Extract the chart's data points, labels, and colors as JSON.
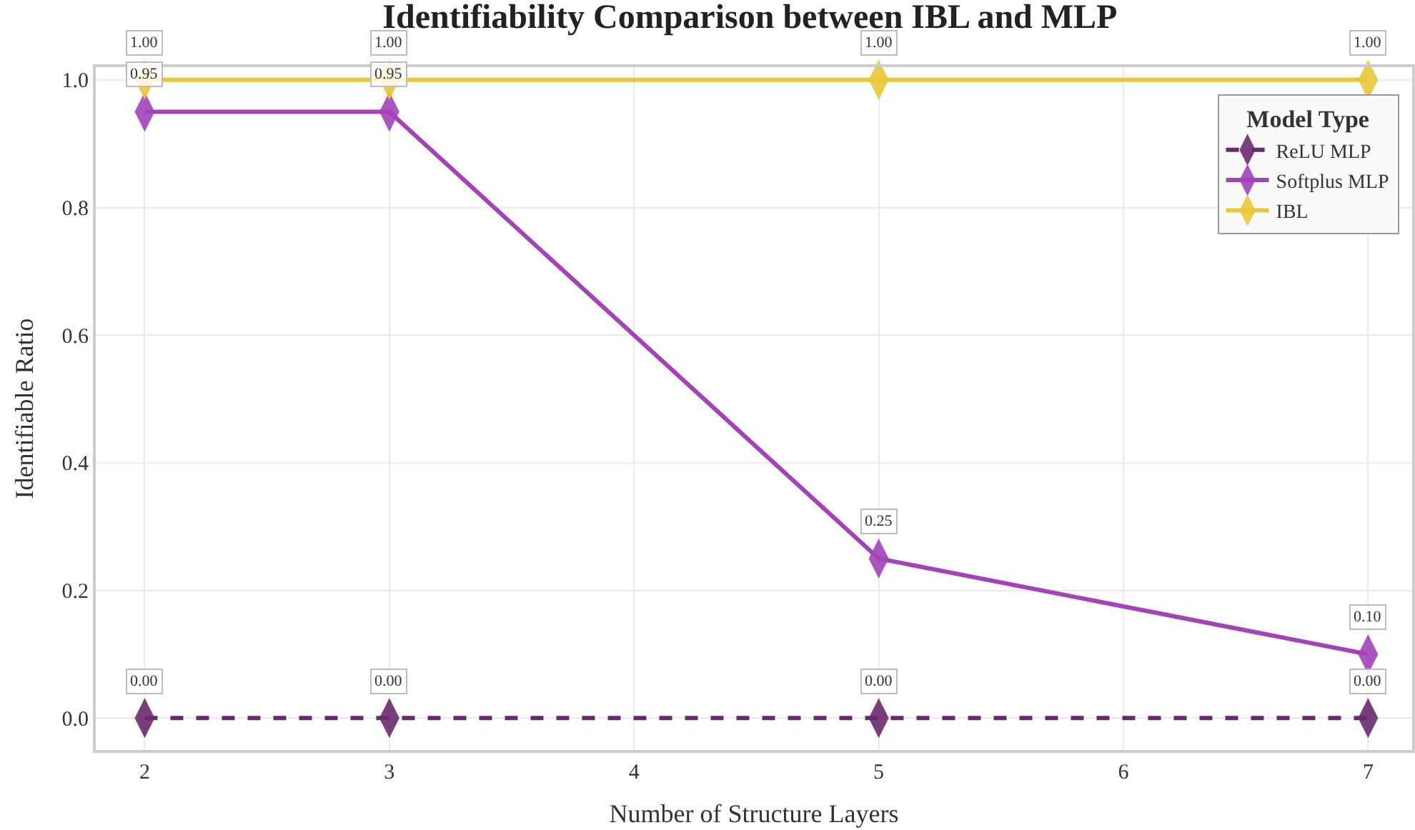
{
  "chart_data": {
    "type": "line",
    "title": "Identifiability Comparison between IBL and MLP",
    "xlabel": "Number of Structure Layers",
    "ylabel": "Identifiable Ratio",
    "legend_title": "Model Type",
    "x": [
      2,
      3,
      5,
      7
    ],
    "series": [
      {
        "name": "ReLU MLP",
        "color": "#6a2a6e",
        "values": [
          0,
          0,
          0,
          0
        ],
        "line_style": "dashed",
        "value_labels": [
          "0.00",
          "0.00",
          "0.00",
          "0.00"
        ]
      },
      {
        "name": "Softplus MLP",
        "color": "#a244b8",
        "values": [
          0.95,
          0.95,
          0.25,
          0.1
        ],
        "line_style": "solid",
        "value_labels": [
          "0.95",
          "0.95",
          "0.25",
          "0.10"
        ]
      },
      {
        "name": "IBL",
        "color": "#e9c63a",
        "values": [
          1,
          1,
          1,
          1
        ],
        "line_style": "solid",
        "value_labels": [
          "1.00",
          "1.00",
          "1.00",
          "1.00"
        ]
      }
    ],
    "xlim": [
      1.8,
      7.18
    ],
    "xticks": [
      2,
      3,
      4,
      5,
      6,
      7
    ],
    "ylim": [
      -0.05,
      1.02
    ],
    "yticks": [
      {
        "value": 0,
        "label": "0.0"
      },
      {
        "value": 0.2,
        "label": "0.2"
      },
      {
        "value": 0.4,
        "label": "0.4"
      },
      {
        "value": 0.6,
        "label": "0.6"
      },
      {
        "value": 0.8,
        "label": "0.8"
      },
      {
        "value": 1,
        "label": "1.0"
      }
    ],
    "grid": true,
    "legend": "top right",
    "marker": "diamond"
  }
}
